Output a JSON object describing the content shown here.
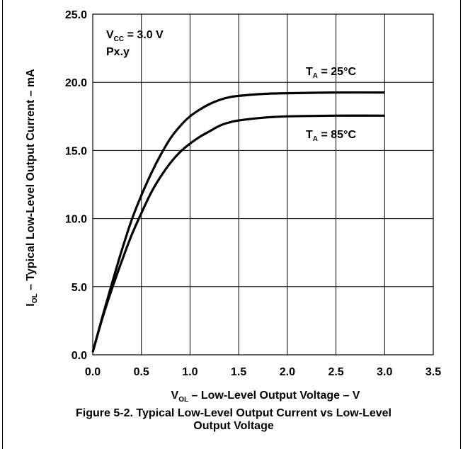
{
  "chart_data": {
    "type": "line",
    "title": "",
    "caption": {
      "line1": "Figure 5-2. Typical Low-Level Output Current vs Low-Level",
      "line2": "Output Voltage"
    },
    "xlabel": {
      "sym": "V",
      "sub": "OL",
      "text": " – Low-Level Output Voltage – V"
    },
    "ylabel": {
      "sym": "I",
      "sub": "OL",
      "text": " – Typical Low-Level Output Current – mA"
    },
    "xlim": [
      0,
      3.5
    ],
    "ylim": [
      0,
      25
    ],
    "xticks": [
      "0.0",
      "0.5",
      "1.0",
      "1.5",
      "2.0",
      "2.5",
      "3.0",
      "3.5"
    ],
    "yticks": [
      "0.0",
      "5.0",
      "10.0",
      "15.0",
      "20.0",
      "25.0"
    ],
    "grid": true,
    "conditions": {
      "vcc": {
        "sym": "V",
        "sub": "CC",
        "text": " = 3.0 V"
      },
      "pin": "Px.y"
    },
    "series": [
      {
        "name": {
          "sym": "T",
          "sub": "A",
          "text": " = 25°C"
        },
        "x": [
          0,
          0.1,
          0.2,
          0.3,
          0.4,
          0.5,
          0.6,
          0.7,
          0.8,
          0.9,
          1.0,
          1.1,
          1.2,
          1.3,
          1.4,
          1.5,
          1.75,
          2.0,
          2.5,
          3.0
        ],
        "y": [
          0.2,
          2.8,
          5.3,
          7.7,
          9.9,
          11.7,
          13.3,
          14.7,
          15.9,
          16.8,
          17.5,
          18.0,
          18.4,
          18.7,
          18.9,
          19.0,
          19.15,
          19.2,
          19.25,
          19.25
        ]
      },
      {
        "name": {
          "sym": "T",
          "sub": "A",
          "text": " = 85°C"
        },
        "x": [
          0,
          0.1,
          0.2,
          0.3,
          0.4,
          0.5,
          0.6,
          0.7,
          0.8,
          0.9,
          1.0,
          1.1,
          1.2,
          1.3,
          1.4,
          1.5,
          1.75,
          2.0,
          2.5,
          3.0
        ],
        "y": [
          0.2,
          2.7,
          4.9,
          6.9,
          8.8,
          10.4,
          11.9,
          13.1,
          14.1,
          14.9,
          15.5,
          16.0,
          16.4,
          16.8,
          17.05,
          17.2,
          17.4,
          17.5,
          17.55,
          17.55
        ]
      }
    ],
    "line_color": "#000000",
    "grid_color": "#000000"
  }
}
